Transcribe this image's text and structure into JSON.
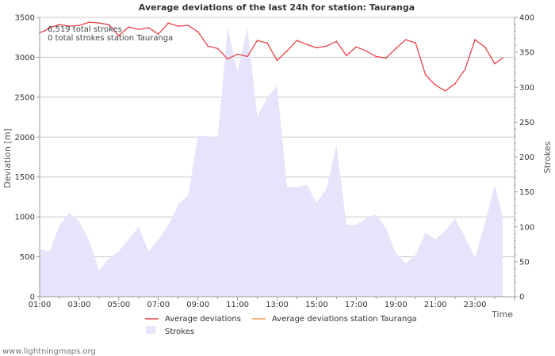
{
  "chart_data": {
    "type": "line",
    "title": "Average deviations of the last 24h for station: Tauranga",
    "xlabel": "Time",
    "ylabel": "Deviation  [m]",
    "y2label": "Strokes",
    "x_range": [
      1,
      25
    ],
    "ylim": [
      0,
      3500
    ],
    "y2lim": [
      0,
      400
    ],
    "xticks": [
      {
        "x": 1,
        "label": "01:00"
      },
      {
        "x": 3,
        "label": "03:00"
      },
      {
        "x": 5,
        "label": "05:00"
      },
      {
        "x": 7,
        "label": "07:00"
      },
      {
        "x": 9,
        "label": "09:00"
      },
      {
        "x": 11,
        "label": "11:00"
      },
      {
        "x": 13,
        "label": "13:00"
      },
      {
        "x": 15,
        "label": "15:00"
      },
      {
        "x": 17,
        "label": "17:00"
      },
      {
        "x": 19,
        "label": "19:00"
      },
      {
        "x": 21,
        "label": "21:00"
      },
      {
        "x": 23,
        "label": "23:00"
      }
    ],
    "yticks": [
      {
        "v": 0,
        "label": "0"
      },
      {
        "v": 500,
        "label": "500"
      },
      {
        "v": 1000,
        "label": "1000"
      },
      {
        "v": 1500,
        "label": "1500"
      },
      {
        "v": 2000,
        "label": "2000"
      },
      {
        "v": 2500,
        "label": "2500"
      },
      {
        "v": 3000,
        "label": "3000"
      },
      {
        "v": 3500,
        "label": "3500"
      }
    ],
    "y2ticks": [
      {
        "v": 0,
        "label": "0"
      },
      {
        "v": 50,
        "label": "50"
      },
      {
        "v": 100,
        "label": "100"
      },
      {
        "v": 150,
        "label": "150"
      },
      {
        "v": 200,
        "label": "200"
      },
      {
        "v": 250,
        "label": "250"
      },
      {
        "v": 300,
        "label": "300"
      },
      {
        "v": 350,
        "label": "350"
      },
      {
        "v": 400,
        "label": "400"
      }
    ],
    "annotations": [
      "6,519 total strokes",
      "0 total strokes station Tauranga"
    ],
    "series": [
      {
        "name": "Average deviations",
        "axis": "left",
        "color": "#e8434a",
        "x": [
          1,
          1.25,
          1.5,
          2,
          2.5,
          3,
          3.5,
          4,
          4.5,
          5,
          5.5,
          6,
          6.5,
          7,
          7.5,
          8,
          8.5,
          9,
          9.5,
          10,
          10.5,
          11,
          11.5,
          12,
          12.5,
          13,
          13.5,
          14,
          14.5,
          15,
          15.5,
          16,
          16.5,
          17,
          17.5,
          18,
          18.5,
          19,
          19.5,
          20,
          20.5,
          21,
          21.5,
          22,
          22.5,
          23,
          23.5,
          24,
          24.4
        ],
        "values": [
          3310,
          3330,
          3370,
          3410,
          3390,
          3400,
          3440,
          3430,
          3410,
          3270,
          3380,
          3350,
          3370,
          3290,
          3430,
          3390,
          3400,
          3320,
          3140,
          3110,
          2980,
          3040,
          3010,
          3210,
          3180,
          2960,
          3080,
          3210,
          3160,
          3120,
          3140,
          3200,
          3020,
          3130,
          3080,
          3010,
          2990,
          3110,
          3220,
          3180,
          2780,
          2650,
          2580,
          2670,
          2850,
          3220,
          3130,
          2920,
          2990
        ]
      },
      {
        "name": "Average deviations station Tauranga",
        "axis": "left",
        "color": "#f0a050",
        "x": [],
        "values": []
      },
      {
        "name": "Strokes",
        "axis": "right",
        "color": "#e6e4fa",
        "x": [
          1,
          1.5,
          2,
          2.5,
          3,
          3.5,
          4,
          4.5,
          5,
          5.5,
          6,
          6.5,
          7,
          7.5,
          8,
          8.5,
          9,
          9.5,
          10,
          10.5,
          11,
          11.5,
          12,
          12.5,
          13,
          13.5,
          14,
          14.5,
          15,
          15.5,
          16,
          16.5,
          17,
          17.5,
          18,
          18.5,
          19,
          19.5,
          20,
          20.5,
          21,
          21.5,
          22,
          22.5,
          23,
          23.5,
          24,
          24.4
        ],
        "values": [
          68,
          65,
          102,
          120,
          108,
          80,
          38,
          55,
          65,
          82,
          100,
          65,
          82,
          102,
          132,
          145,
          230,
          230,
          228,
          385,
          322,
          385,
          258,
          285,
          302,
          157,
          157,
          160,
          135,
          155,
          218,
          103,
          103,
          112,
          118,
          98,
          62,
          48,
          60,
          92,
          82,
          95,
          112,
          85,
          57,
          105,
          160,
          115
        ]
      }
    ]
  },
  "footer": {
    "credit": "www.lightningmaps.org"
  }
}
